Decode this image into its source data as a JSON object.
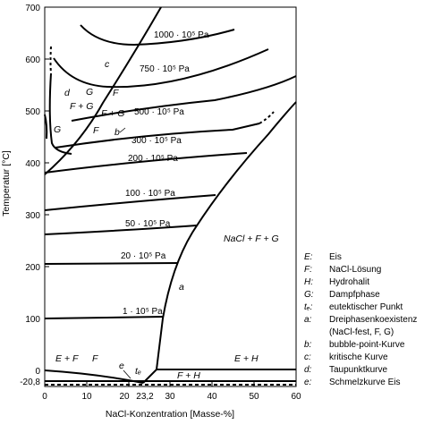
{
  "axes": {
    "x_label": "NaCl-Konzentration [Masse-%]",
    "y_label": "Temperatur [°C]",
    "x_ticks": [
      "0",
      "10",
      "20",
      "30",
      "40",
      "50",
      "60"
    ],
    "y_ticks": [
      "700",
      "600",
      "500",
      "400",
      "300",
      "200",
      "100",
      "0"
    ],
    "extra_y_tick": "-20,8",
    "extra_x_tick": "23,2"
  },
  "isobars": {
    "p1000": "1000 · 10⁵ Pa",
    "p750": "750 · 10⁵ Pa",
    "p500": "500 · 10⁵ Pa",
    "p300": "300 · 10⁵ Pa",
    "p200": "200 · 10⁵ Pa",
    "p100": "100 · 10⁵ Pa",
    "p50": "50 · 10⁵ Pa",
    "p20": "20 · 10⁵ Pa",
    "p1": "1 · 10⁵ Pa"
  },
  "regions": {
    "nacl_f_g": "NaCl + F + G",
    "e_f": "E + F",
    "f_low": "F",
    "e_h": "E + H",
    "f_h": "F + H",
    "f_g_left": "F + G",
    "f_g_mid": "F + G",
    "g_upper": "G",
    "g_lower": "G",
    "f_upper": "F",
    "f_lower": "F"
  },
  "curve_labels": {
    "a": "a",
    "b": "b",
    "c": "c",
    "d": "d",
    "e": "e",
    "te": "tₑ"
  },
  "legend": [
    {
      "key": "E:",
      "text": "Eis"
    },
    {
      "key": "F:",
      "text": "NaCl-Lösung"
    },
    {
      "key": "H:",
      "text": "Hydrohalit"
    },
    {
      "key": "G:",
      "text": "Dampfphase"
    },
    {
      "key": "tₑ:",
      "text": "eutektischer Punkt"
    },
    {
      "key": "a:",
      "text": "Dreiphasenkoexistenz"
    },
    {
      "key": "",
      "text": "(NaCl-fest, F, G)"
    },
    {
      "key": "b:",
      "text": "bubble-point-Kurve"
    },
    {
      "key": "c:",
      "text": "kritische Kurve"
    },
    {
      "key": "d:",
      "text": "Taupunktkurve"
    },
    {
      "key": "e:",
      "text": "Schmelzkurve Eis"
    }
  ]
}
